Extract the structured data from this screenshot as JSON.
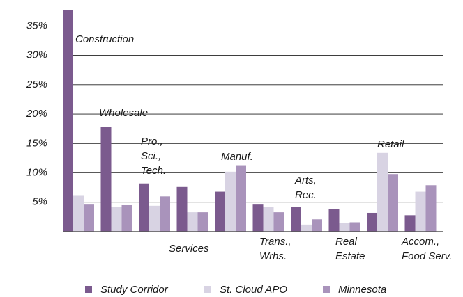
{
  "chart_data": {
    "type": "bar",
    "categories": [
      [
        "Construction"
      ],
      [
        "Wholesale"
      ],
      [
        "Pro.,",
        "Sci.,",
        "Tech."
      ],
      [
        "Services"
      ],
      [
        "Manuf."
      ],
      [
        "Trans.,",
        "Wrhs."
      ],
      [
        "Arts,",
        "Rec."
      ],
      [
        "Real",
        "Estate"
      ],
      [
        "Retail"
      ],
      [
        "Accom.,",
        "Food Serv."
      ]
    ],
    "series": [
      {
        "name": "Study Corridor",
        "color": "#7b5a8e",
        "values": [
          37.7,
          17.8,
          8.2,
          7.6,
          6.8,
          4.6,
          4.2,
          3.9,
          3.2,
          2.8
        ]
      },
      {
        "name": "St. Cloud APO",
        "color": "#d8d3e3",
        "values": [
          6.1,
          4.2,
          4.4,
          3.3,
          10.2,
          4.2,
          1.2,
          1.5,
          13.4,
          6.8
        ]
      },
      {
        "name": "Minnesota",
        "color": "#a993bb",
        "values": [
          4.6,
          4.5,
          6.0,
          3.3,
          11.3,
          3.3,
          2.1,
          1.6,
          9.8,
          7.9
        ]
      }
    ],
    "ylim": [
      0,
      38
    ],
    "yticks": [
      {
        "value": 5,
        "label": "5%"
      },
      {
        "value": 10,
        "label": "10%"
      },
      {
        "value": 15,
        "label": "15%"
      },
      {
        "value": 20,
        "label": "20%"
      },
      {
        "value": 25,
        "label": "25%"
      },
      {
        "value": 30,
        "label": "30%"
      },
      {
        "value": 35,
        "label": "35%"
      }
    ],
    "grid": true,
    "legend": "bottom"
  }
}
